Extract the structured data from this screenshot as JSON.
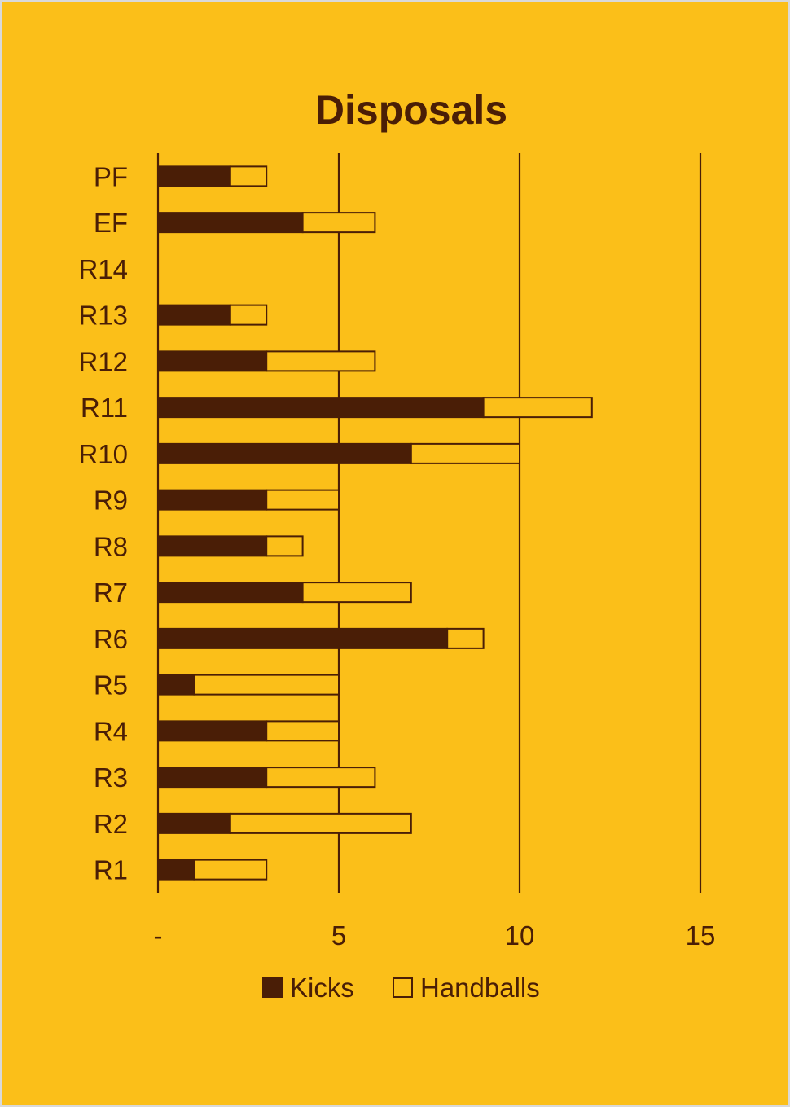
{
  "chart_data": {
    "type": "bar",
    "orientation": "horizontal",
    "stacked": true,
    "title": "Disposals",
    "categories": [
      "R1",
      "R2",
      "R3",
      "R4",
      "R5",
      "R6",
      "R7",
      "R8",
      "R9",
      "R10",
      "R11",
      "R12",
      "R13",
      "R14",
      "EF",
      "PF"
    ],
    "series": [
      {
        "name": "Kicks",
        "values": [
          1,
          2,
          3,
          3,
          1,
          8,
          4,
          3,
          3,
          7,
          9,
          3,
          2,
          0,
          4,
          2
        ]
      },
      {
        "name": "Handballs",
        "values": [
          2,
          5,
          3,
          2,
          4,
          1,
          3,
          1,
          2,
          3,
          3,
          3,
          1,
          0,
          2,
          1
        ]
      }
    ],
    "xlim": [
      0,
      15
    ],
    "x_ticks": [
      0,
      5,
      10,
      15
    ],
    "x_tick_labels": [
      "-",
      "5",
      "10",
      "15"
    ],
    "xlabel": "",
    "ylabel": "",
    "grid": "vertical",
    "legend_position": "bottom"
  },
  "colors": {
    "background": "#FBBF19",
    "ink": "#4A1E06",
    "kicks_fill": "#4A1E06",
    "handballs_fill": "#FBBF19"
  }
}
